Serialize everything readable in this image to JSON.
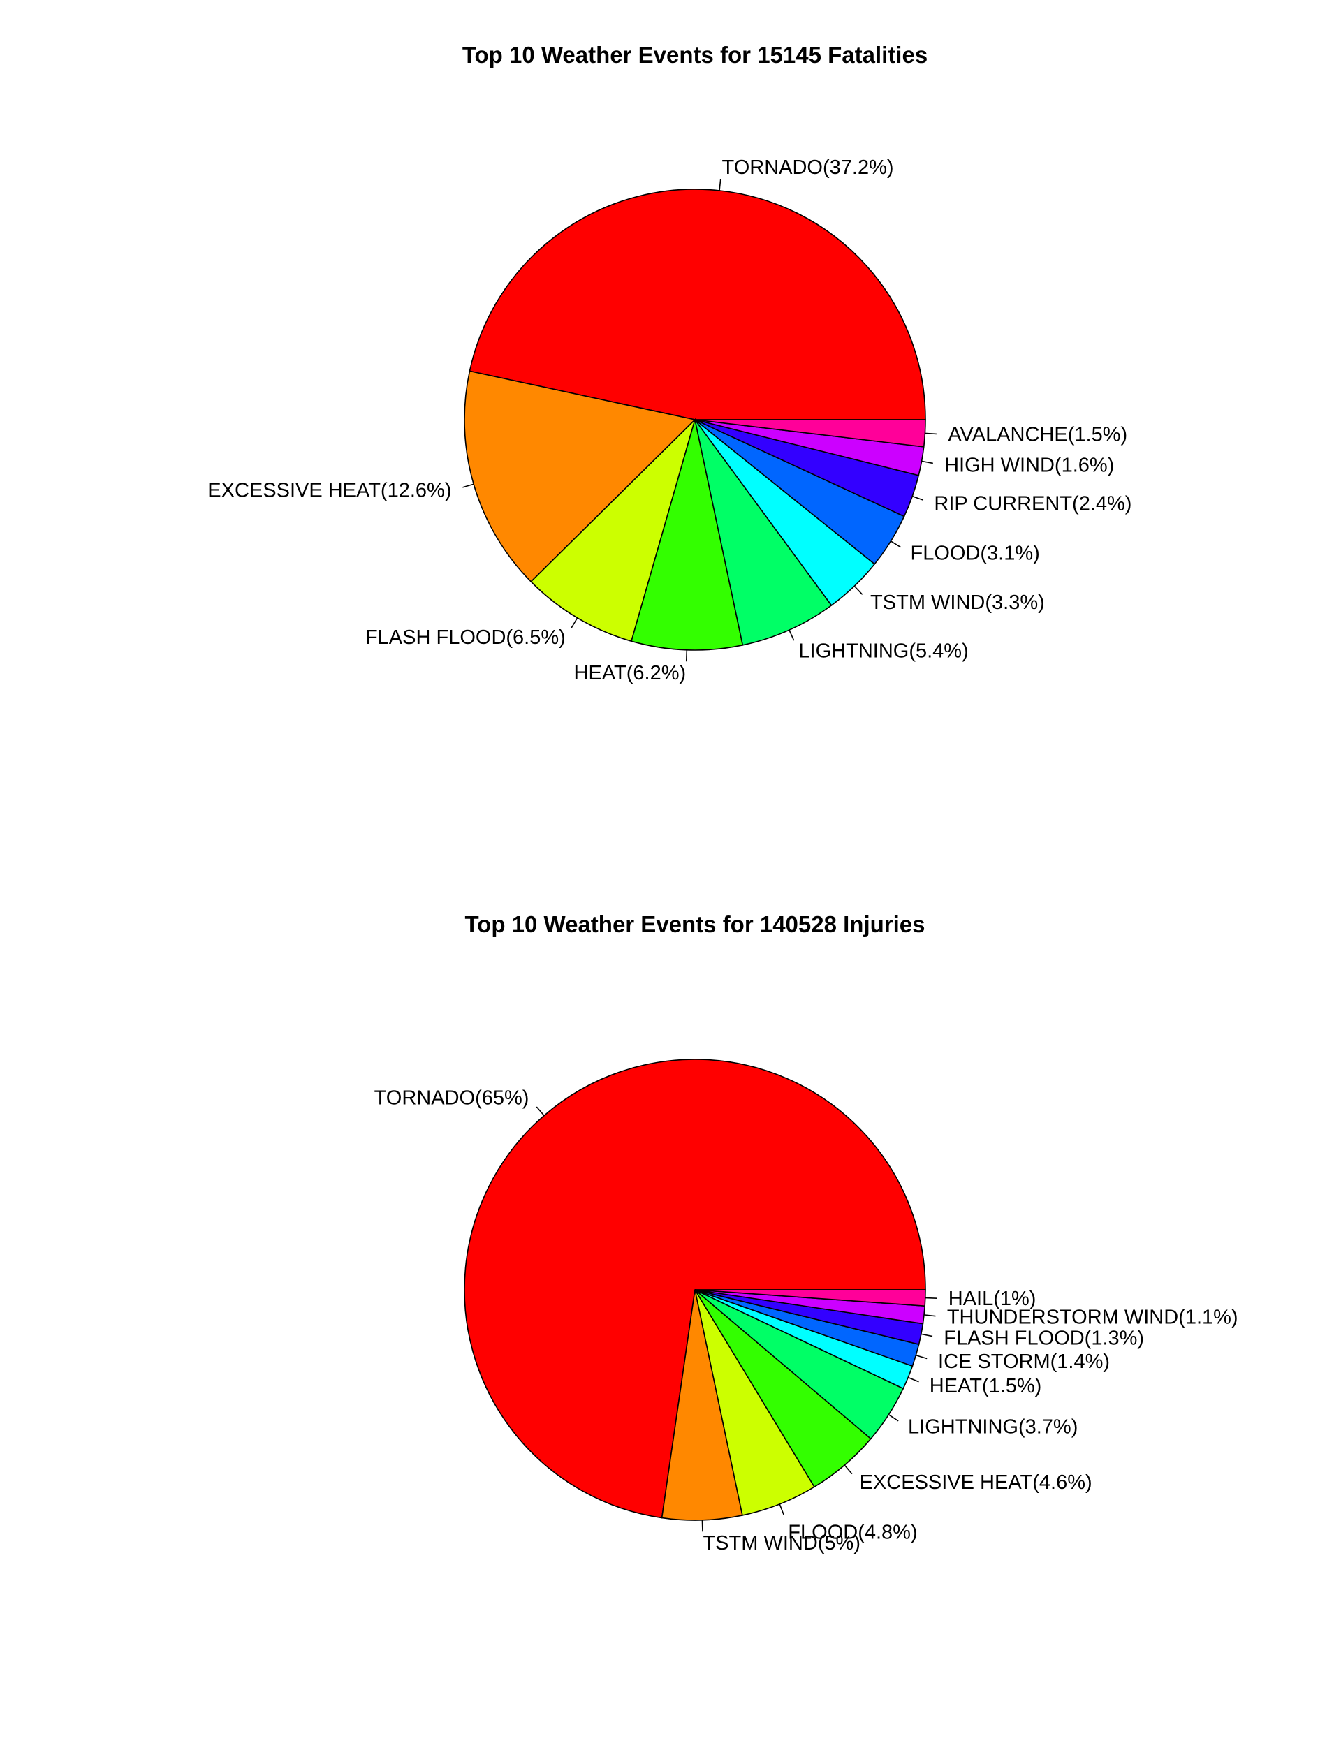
{
  "chart_data": [
    {
      "type": "pie",
      "title": "Top 10 Weather Events for 15145 Fatalities",
      "categories": [
        "TORNADO",
        "EXCESSIVE HEAT",
        "FLASH FLOOD",
        "HEAT",
        "LIGHTNING",
        "TSTM WIND",
        "FLOOD",
        "RIP CURRENT",
        "HIGH WIND",
        "AVALANCHE"
      ],
      "values": [
        37.2,
        12.6,
        6.5,
        6.2,
        5.4,
        3.3,
        3.1,
        2.4,
        1.6,
        1.5
      ],
      "labels": [
        "TORNADO(37.2%)",
        "EXCESSIVE HEAT(12.6%)",
        "FLASH FLOOD(6.5%)",
        "HEAT(6.2%)",
        "LIGHTNING(5.4%)",
        "TSTM WIND(3.3%)",
        "FLOOD(3.1%)",
        "RIP CURRENT(2.4%)",
        "HIGH WIND(1.6%)",
        "AVALANCHE(1.5%)"
      ],
      "colors": [
        "#FF0000",
        "#FF8800",
        "#CCFF00",
        "#33FF00",
        "#00FF66",
        "#00FFFF",
        "#0066FF",
        "#3300FF",
        "#CC00FF",
        "#FF0099"
      ]
    },
    {
      "type": "pie",
      "title": "Top 10 Weather Events for 140528 Injuries",
      "categories": [
        "TORNADO",
        "TSTM WIND",
        "FLOOD",
        "EXCESSIVE HEAT",
        "LIGHTNING",
        "HEAT",
        "ICE STORM",
        "FLASH FLOOD",
        "THUNDERSTORM WIND",
        "HAIL"
      ],
      "values": [
        65,
        5,
        4.8,
        4.6,
        3.7,
        1.5,
        1.4,
        1.3,
        1.1,
        1
      ],
      "labels": [
        "TORNADO(65%)",
        "TSTM WIND(5%)",
        "FLOOD(4.8%)",
        "EXCESSIVE HEAT(4.6%)",
        "LIGHTNING(3.7%)",
        "HEAT(1.5%)",
        "ICE STORM(1.4%)",
        "FLASH FLOOD(1.3%)",
        "THUNDERSTORM WIND(1.1%)",
        "HAIL(1%)"
      ],
      "colors": [
        "#FF0000",
        "#FF8800",
        "#CCFF00",
        "#33FF00",
        "#00FF66",
        "#00FFFF",
        "#0066FF",
        "#3300FF",
        "#CC00FF",
        "#FF0099"
      ]
    }
  ]
}
